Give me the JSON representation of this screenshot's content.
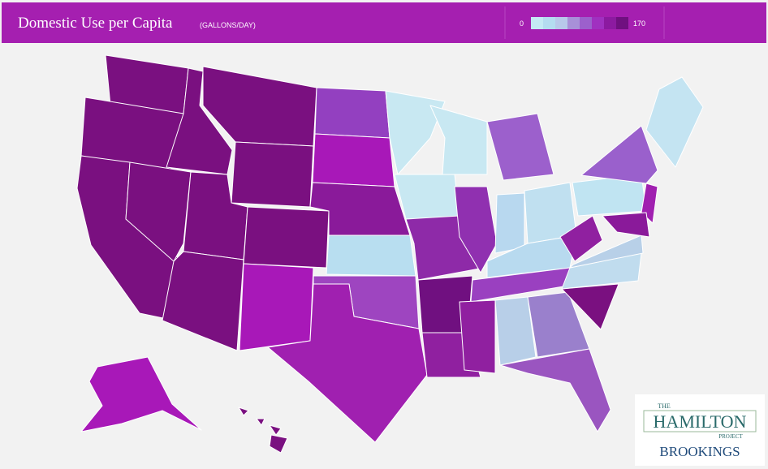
{
  "header": {
    "title": "Domestic Use per Capita",
    "subtitle": "(GALLONS/DAY)"
  },
  "legend": {
    "min": "0",
    "max": "170",
    "colors": [
      "#c4eaf4",
      "#b4dcf0",
      "#b8c8ea",
      "#a890d8",
      "#9c60cc",
      "#a030c0",
      "#8c1aa0",
      "#701080"
    ]
  },
  "logo": {
    "the": "THE",
    "hamilton": "HAMILTON",
    "project": "PROJECT",
    "brookings": "BROOKINGS"
  }
}
